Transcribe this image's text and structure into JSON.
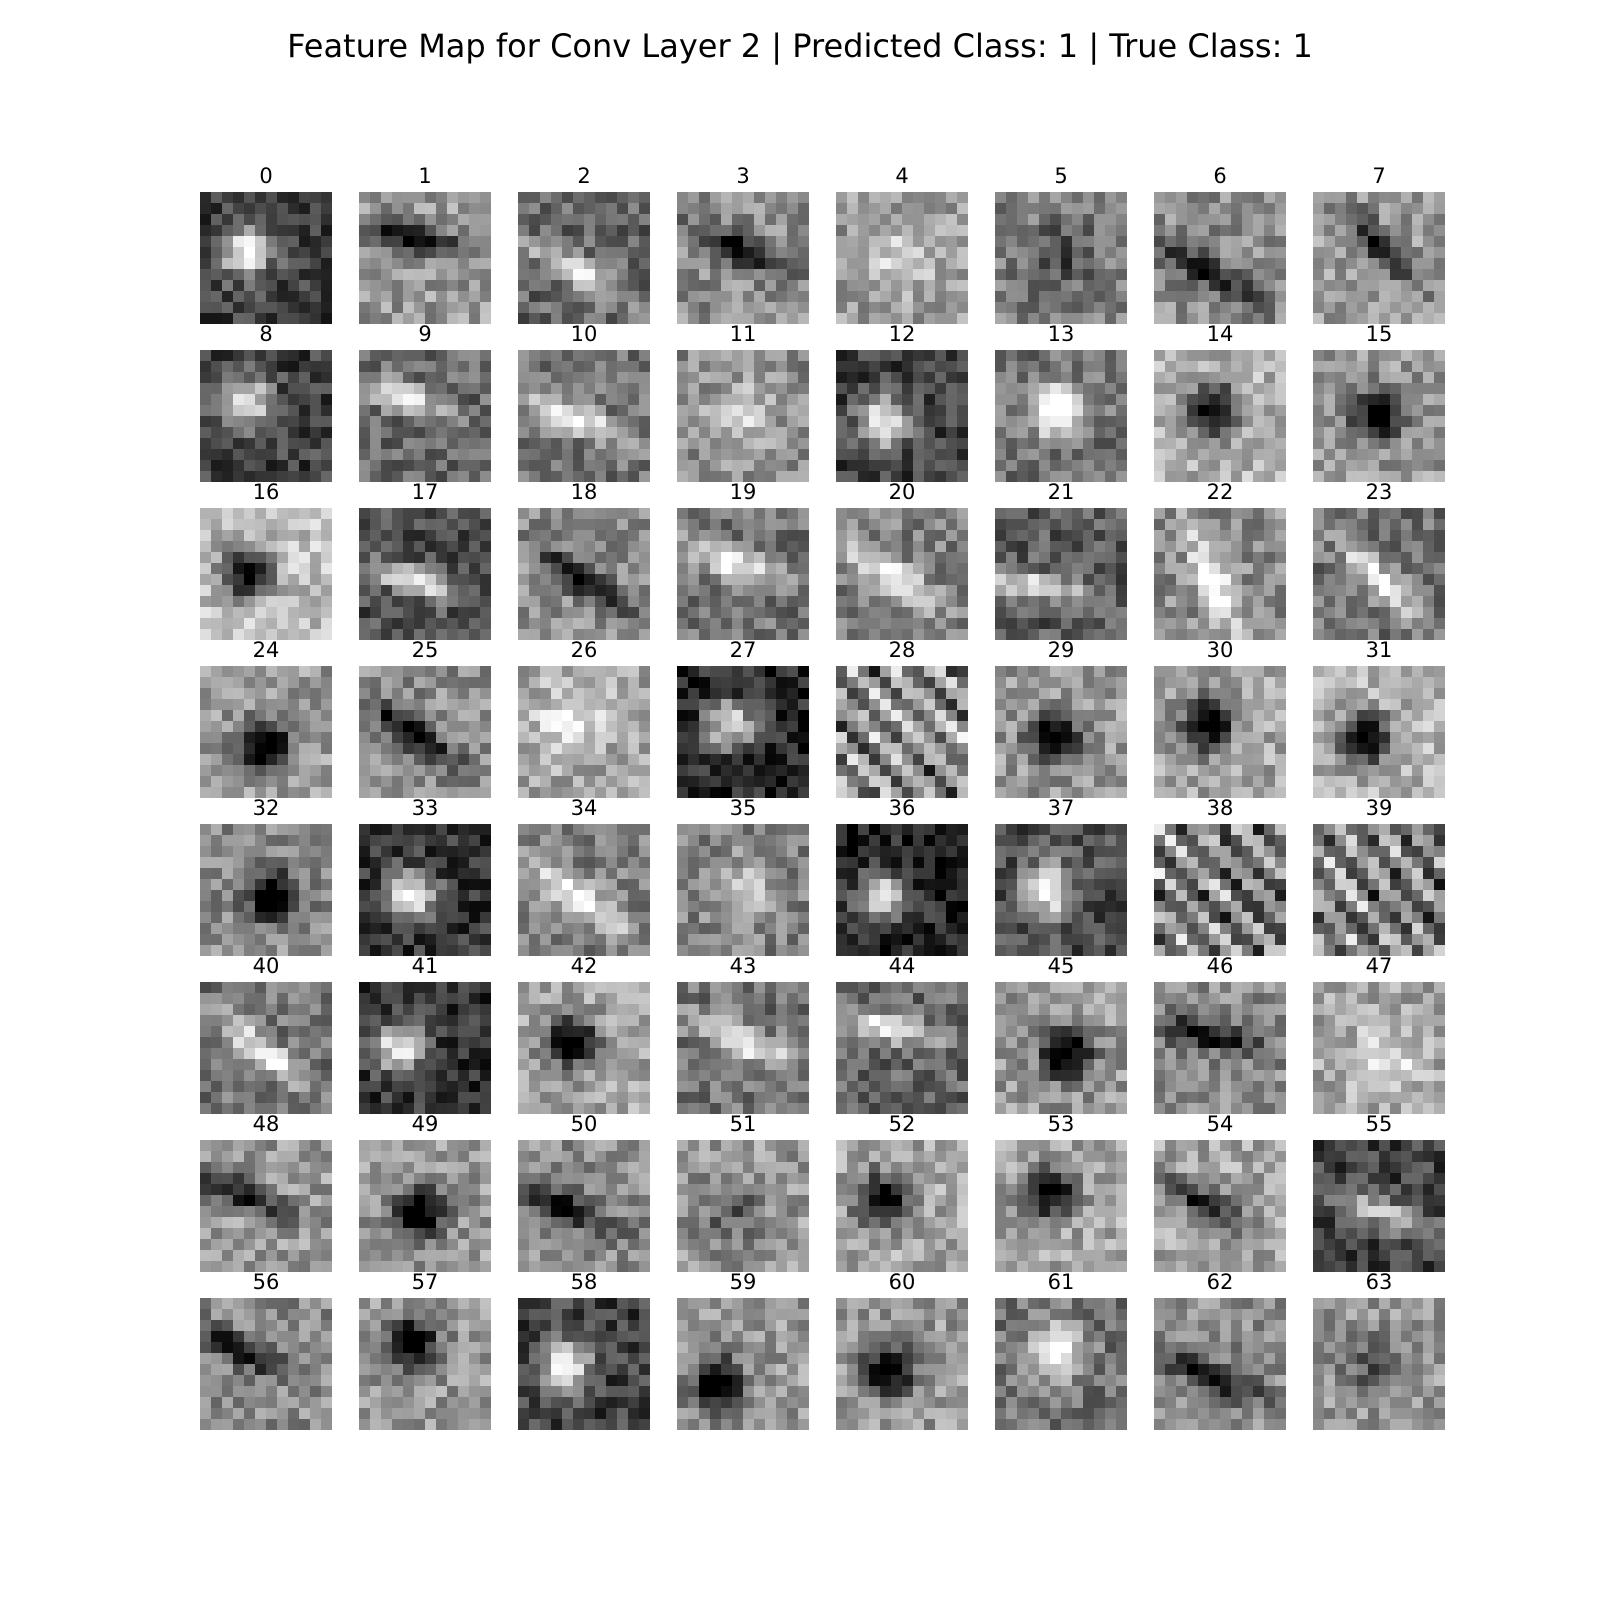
{
  "figure": {
    "title": "Feature Map for Conv Layer 2 | Predicted Class: 1 | True Class: 1"
  },
  "chart_data": {
    "type": "heatmap",
    "title": "Feature Map for Conv Layer 2 | Predicted Class: 1 | True Class: 1",
    "colormap": "gray",
    "rows": 8,
    "cols": 8,
    "grid": false,
    "axes_visible": false,
    "panel_titles": [
      "0",
      "1",
      "2",
      "3",
      "4",
      "5",
      "6",
      "7",
      "8",
      "9",
      "10",
      "11",
      "12",
      "13",
      "14",
      "15",
      "16",
      "17",
      "18",
      "19",
      "20",
      "21",
      "22",
      "23",
      "24",
      "25",
      "26",
      "27",
      "28",
      "29",
      "30",
      "31",
      "32",
      "33",
      "34",
      "35",
      "36",
      "37",
      "38",
      "39",
      "40",
      "41",
      "42",
      "43",
      "44",
      "45",
      "46",
      "47",
      "48",
      "49",
      "50",
      "51",
      "52",
      "53",
      "54",
      "55",
      "56",
      "57",
      "58",
      "59",
      "60",
      "61",
      "62",
      "63"
    ],
    "panels": [
      {
        "cx": 0.35,
        "cy": 0.45,
        "kind": "blob",
        "sign": 1,
        "base": 0.25
      },
      {
        "cx": 0.4,
        "cy": 0.35,
        "kind": "edge",
        "sign": -1,
        "base": 0.6,
        "angle": 0.2
      },
      {
        "cx": 0.45,
        "cy": 0.6,
        "kind": "edge",
        "sign": 1,
        "base": 0.4,
        "angle": 0.5
      },
      {
        "cx": 0.5,
        "cy": 0.45,
        "kind": "edge",
        "sign": -1,
        "base": 0.55,
        "angle": 0.4
      },
      {
        "cx": 0.5,
        "cy": 0.5,
        "kind": "noise",
        "sign": 1,
        "base": 0.6
      },
      {
        "cx": 0.5,
        "cy": 0.5,
        "kind": "noise",
        "sign": -1,
        "base": 0.5
      },
      {
        "cx": 0.4,
        "cy": 0.6,
        "kind": "edge",
        "sign": -1,
        "base": 0.55,
        "angle": 0.5
      },
      {
        "cx": 0.5,
        "cy": 0.4,
        "kind": "edge",
        "sign": -1,
        "base": 0.6,
        "angle": 0.8
      },
      {
        "cx": 0.35,
        "cy": 0.4,
        "kind": "blob",
        "sign": 1,
        "base": 0.25
      },
      {
        "cx": 0.3,
        "cy": 0.35,
        "kind": "edge",
        "sign": 1,
        "base": 0.4,
        "angle": 0.3
      },
      {
        "cx": 0.4,
        "cy": 0.5,
        "kind": "edge",
        "sign": 1,
        "base": 0.45,
        "angle": 0.4
      },
      {
        "cx": 0.5,
        "cy": 0.5,
        "kind": "noise",
        "sign": 1,
        "base": 0.55
      },
      {
        "cx": 0.35,
        "cy": 0.55,
        "kind": "blob",
        "sign": 1,
        "base": 0.25
      },
      {
        "cx": 0.45,
        "cy": 0.45,
        "kind": "blob",
        "sign": 1,
        "base": 0.45
      },
      {
        "cx": 0.45,
        "cy": 0.45,
        "kind": "blob",
        "sign": -1,
        "base": 0.7
      },
      {
        "cx": 0.5,
        "cy": 0.5,
        "kind": "blob",
        "sign": -1,
        "base": 0.6
      },
      {
        "cx": 0.35,
        "cy": 0.5,
        "kind": "blob",
        "sign": -1,
        "base": 0.75
      },
      {
        "cx": 0.4,
        "cy": 0.55,
        "kind": "edge",
        "sign": 1,
        "base": 0.3,
        "angle": 0.3
      },
      {
        "cx": 0.5,
        "cy": 0.55,
        "kind": "edge",
        "sign": -1,
        "base": 0.55,
        "angle": 0.6
      },
      {
        "cx": 0.4,
        "cy": 0.4,
        "kind": "edge",
        "sign": 1,
        "base": 0.45,
        "angle": 0.4
      },
      {
        "cx": 0.4,
        "cy": 0.5,
        "kind": "edge",
        "sign": 1,
        "base": 0.5,
        "angle": 0.6
      },
      {
        "cx": 0.3,
        "cy": 0.6,
        "kind": "edge",
        "sign": 1,
        "base": 0.35,
        "angle": 0.1
      },
      {
        "cx": 0.45,
        "cy": 0.55,
        "kind": "edge",
        "sign": 1,
        "base": 0.55,
        "angle": 1.2
      },
      {
        "cx": 0.5,
        "cy": 0.55,
        "kind": "edge",
        "sign": 1,
        "base": 0.45,
        "angle": 0.8
      },
      {
        "cx": 0.5,
        "cy": 0.6,
        "kind": "blob",
        "sign": -1,
        "base": 0.6
      },
      {
        "cx": 0.4,
        "cy": 0.5,
        "kind": "edge",
        "sign": -1,
        "base": 0.55,
        "angle": 0.6
      },
      {
        "cx": 0.4,
        "cy": 0.4,
        "kind": "noise",
        "sign": 1,
        "base": 0.65
      },
      {
        "cx": 0.4,
        "cy": 0.45,
        "kind": "blob",
        "sign": 1,
        "base": 0.15
      },
      {
        "cx": 0.5,
        "cy": 0.5,
        "kind": "stripes",
        "sign": 1,
        "base": 0.55,
        "angle": 0.8
      },
      {
        "cx": 0.45,
        "cy": 0.55,
        "kind": "blob",
        "sign": -1,
        "base": 0.6
      },
      {
        "cx": 0.4,
        "cy": 0.45,
        "kind": "blob",
        "sign": -1,
        "base": 0.65
      },
      {
        "cx": 0.4,
        "cy": 0.55,
        "kind": "blob",
        "sign": -1,
        "base": 0.7
      },
      {
        "cx": 0.55,
        "cy": 0.55,
        "kind": "blob",
        "sign": -1,
        "base": 0.55
      },
      {
        "cx": 0.4,
        "cy": 0.55,
        "kind": "blob",
        "sign": 1,
        "base": 0.2
      },
      {
        "cx": 0.45,
        "cy": 0.55,
        "kind": "edge",
        "sign": 1,
        "base": 0.5,
        "angle": 0.6
      },
      {
        "cx": 0.5,
        "cy": 0.5,
        "kind": "noise",
        "sign": 1,
        "base": 0.5
      },
      {
        "cx": 0.35,
        "cy": 0.55,
        "kind": "blob",
        "sign": 1,
        "base": 0.15
      },
      {
        "cx": 0.4,
        "cy": 0.5,
        "kind": "blob",
        "sign": 1,
        "base": 0.3
      },
      {
        "cx": 0.45,
        "cy": 0.55,
        "kind": "stripes",
        "sign": 1,
        "base": 0.5,
        "angle": 0.8
      },
      {
        "cx": 0.5,
        "cy": 0.5,
        "kind": "stripes",
        "sign": 1,
        "base": 0.5,
        "angle": 0.9
      },
      {
        "cx": 0.5,
        "cy": 0.55,
        "kind": "edge",
        "sign": 1,
        "base": 0.45,
        "angle": 0.7
      },
      {
        "cx": 0.3,
        "cy": 0.5,
        "kind": "blob",
        "sign": 1,
        "base": 0.2
      },
      {
        "cx": 0.4,
        "cy": 0.45,
        "kind": "blob",
        "sign": -1,
        "base": 0.65
      },
      {
        "cx": 0.5,
        "cy": 0.45,
        "kind": "edge",
        "sign": 1,
        "base": 0.45,
        "angle": 0.4
      },
      {
        "cx": 0.4,
        "cy": 0.35,
        "kind": "edge",
        "sign": 1,
        "base": 0.4,
        "angle": 0.2
      },
      {
        "cx": 0.55,
        "cy": 0.55,
        "kind": "blob",
        "sign": -1,
        "base": 0.6
      },
      {
        "cx": 0.4,
        "cy": 0.4,
        "kind": "edge",
        "sign": -1,
        "base": 0.55,
        "angle": 0.2
      },
      {
        "cx": 0.55,
        "cy": 0.6,
        "kind": "noise",
        "sign": 1,
        "base": 0.65
      },
      {
        "cx": 0.3,
        "cy": 0.4,
        "kind": "edge",
        "sign": -1,
        "base": 0.6,
        "angle": 0.4
      },
      {
        "cx": 0.45,
        "cy": 0.55,
        "kind": "blob",
        "sign": -1,
        "base": 0.6
      },
      {
        "cx": 0.35,
        "cy": 0.5,
        "kind": "edge",
        "sign": -1,
        "base": 0.55,
        "angle": 0.4
      },
      {
        "cx": 0.4,
        "cy": 0.55,
        "kind": "noise",
        "sign": -1,
        "base": 0.6
      },
      {
        "cx": 0.35,
        "cy": 0.45,
        "kind": "blob",
        "sign": -1,
        "base": 0.65
      },
      {
        "cx": 0.4,
        "cy": 0.4,
        "kind": "blob",
        "sign": -1,
        "base": 0.65
      },
      {
        "cx": 0.35,
        "cy": 0.45,
        "kind": "edge",
        "sign": -1,
        "base": 0.65,
        "angle": 0.5
      },
      {
        "cx": 0.5,
        "cy": 0.55,
        "kind": "edge",
        "sign": 1,
        "base": 0.25,
        "angle": 0.3
      },
      {
        "cx": 0.3,
        "cy": 0.4,
        "kind": "edge",
        "sign": -1,
        "base": 0.55,
        "angle": 0.4
      },
      {
        "cx": 0.4,
        "cy": 0.35,
        "kind": "blob",
        "sign": -1,
        "base": 0.6
      },
      {
        "cx": 0.35,
        "cy": 0.5,
        "kind": "blob",
        "sign": 1,
        "base": 0.25
      },
      {
        "cx": 0.3,
        "cy": 0.65,
        "kind": "blob",
        "sign": -1,
        "base": 0.6
      },
      {
        "cx": 0.4,
        "cy": 0.55,
        "kind": "blob",
        "sign": -1,
        "base": 0.6
      },
      {
        "cx": 0.45,
        "cy": 0.4,
        "kind": "blob",
        "sign": 1,
        "base": 0.45
      },
      {
        "cx": 0.45,
        "cy": 0.6,
        "kind": "edge",
        "sign": -1,
        "base": 0.55,
        "angle": 0.4
      },
      {
        "cx": 0.45,
        "cy": 0.5,
        "kind": "noise",
        "sign": -1,
        "base": 0.6
      }
    ]
  }
}
